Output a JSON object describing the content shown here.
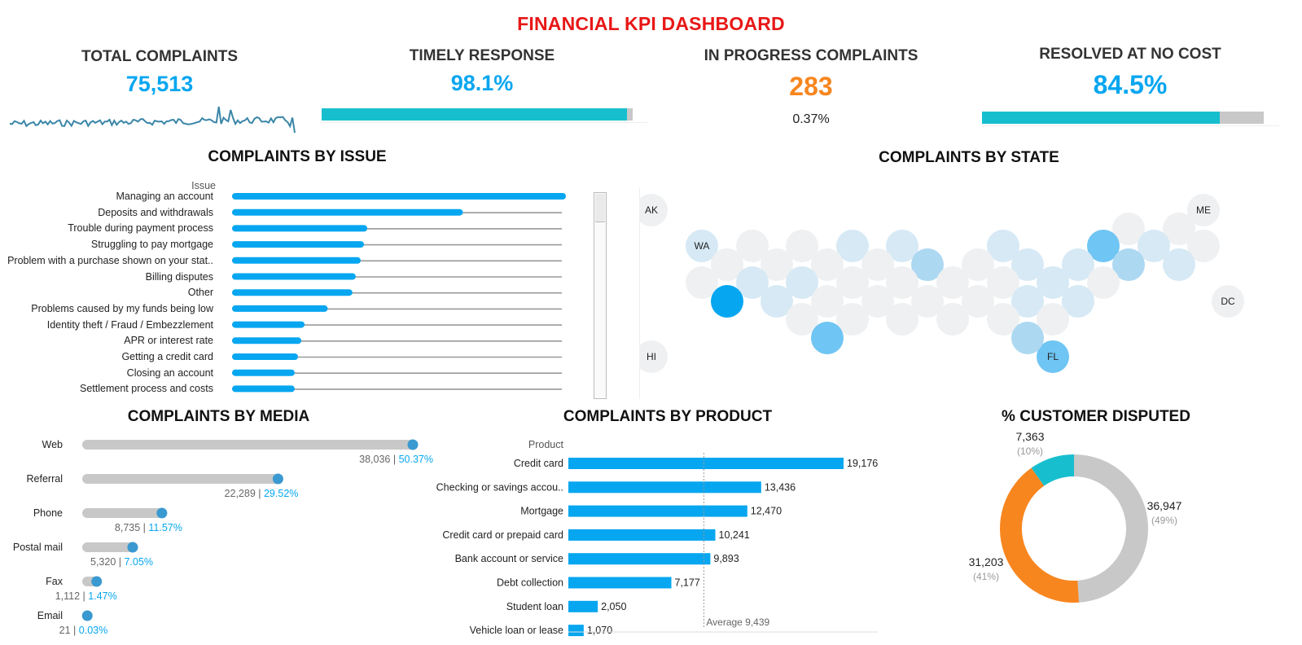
{
  "dashboard": {
    "title": "FINANCIAL KPI DASHBOARD"
  },
  "kpis": {
    "total": {
      "title": "TOTAL COMPLAINTS",
      "value": "75,513"
    },
    "timely": {
      "title": "TIMELY RESPONSE",
      "value": "98.1%",
      "fraction": 0.981
    },
    "in_progress": {
      "title": "IN PROGRESS COMPLAINTS",
      "value": "283",
      "sub": "0.37%"
    },
    "no_cost": {
      "title": "RESOLVED AT NO COST",
      "value": "84.5%",
      "fraction": 0.845
    }
  },
  "colors": {
    "blue": "#07a6f0",
    "teal": "#17bfce",
    "orange": "#f7861f",
    "gray": "#c8c8c8",
    "red": "#e81717"
  },
  "chart_data": [
    {
      "id": "issue",
      "type": "bar",
      "title": "COMPLAINTS BY ISSUE",
      "header": "Issue",
      "categories": [
        "Managing an account",
        "Deposits and withdrawals",
        "Trouble during payment process",
        "Struggling to pay mortgage",
        "Problem with a purchase shown on your stat..",
        "Billing disputes",
        "Other",
        "Problems caused by my funds being low",
        "Identity theft / Fraud / Embezzlement",
        "APR or interest rate",
        "Getting a credit card",
        "Closing an account",
        "Settlement process and costs"
      ],
      "values": [
        10000,
        7000,
        4100,
        4000,
        3900,
        3750,
        3650,
        2900,
        2200,
        2100,
        2000,
        1900,
        1900
      ]
    },
    {
      "id": "state",
      "type": "map",
      "title": "COMPLAINTS BY STATE",
      "labeled_states": [
        "AK",
        "ME",
        "WA",
        "DC",
        "HI",
        "FL"
      ]
    },
    {
      "id": "media",
      "type": "bar",
      "title": "COMPLAINTS BY MEDIA",
      "categories": [
        "Web",
        "Referral",
        "Phone",
        "Postal mail",
        "Fax",
        "Email"
      ],
      "values": [
        38036,
        22289,
        8735,
        5320,
        1112,
        21
      ],
      "value_labels": [
        "38,036",
        "22,289",
        "8,735",
        "5,320",
        "1,112",
        "21"
      ],
      "percent_labels": [
        "50.37%",
        "29.52%",
        "11.57%",
        "7.05%",
        "1.47%",
        "0.03%"
      ]
    },
    {
      "id": "product",
      "type": "bar",
      "title": "COMPLAINTS BY PRODUCT",
      "header": "Product",
      "categories": [
        "Credit card",
        "Checking or savings accou..",
        "Mortgage",
        "Credit card or prepaid card",
        "Bank account or service",
        "Debt collection",
        "Student loan",
        "Vehicle loan or lease"
      ],
      "values": [
        19176,
        13436,
        12470,
        10241,
        9893,
        7177,
        2050,
        1070
      ],
      "value_labels": [
        "19,176",
        "13,436",
        "12,470",
        "10,241",
        "9,893",
        "7,177",
        "2,050",
        "1,070"
      ],
      "reference_line": {
        "value": 9439,
        "label": "Average 9,439"
      }
    },
    {
      "id": "disputed",
      "type": "pie",
      "title": "% CUSTOMER DISPUTED",
      "values": [
        36947,
        31203,
        7363
      ],
      "value_labels": [
        "36,947",
        "31,203",
        "7,363"
      ],
      "percent_labels": [
        "(49%)",
        "(41%)",
        "(10%)"
      ],
      "colors": [
        "#c8c8c8",
        "#f7861f",
        "#17bfce"
      ]
    }
  ]
}
